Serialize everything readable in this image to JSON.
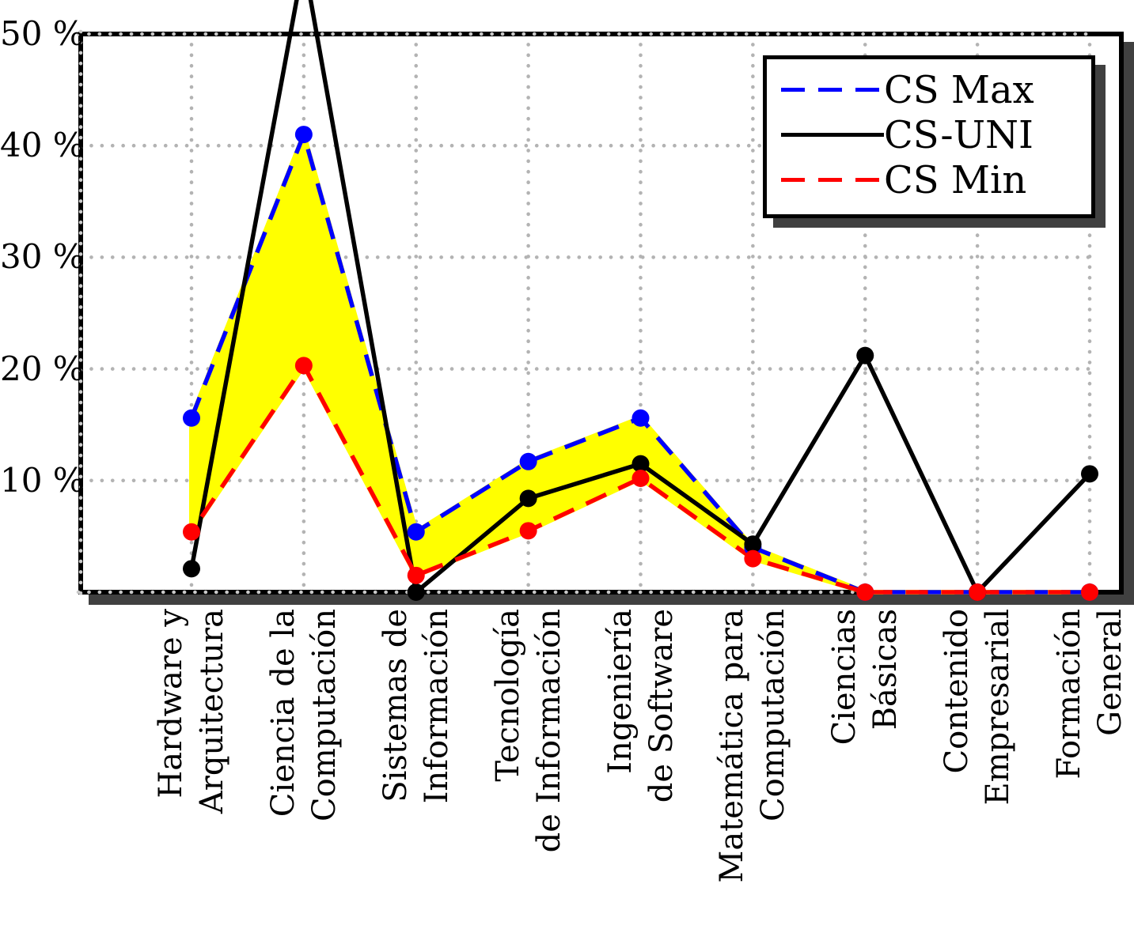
{
  "figure": {
    "background": "#ffffff",
    "frame_color": "#000000",
    "shadow_color": "#404040",
    "grid_dot_color": "#b3b3b3",
    "frame_dot_color": "#c9c9c9"
  },
  "y_axis": {
    "tick_labels": [
      "10 %",
      "20 %",
      "30 %",
      "40 %",
      "50 %"
    ],
    "tick_values": [
      10,
      20,
      30,
      40,
      50
    ],
    "min": 0,
    "max": 50
  },
  "legend": {
    "position": "top-right",
    "items": [
      {
        "label": "CS Max",
        "color": "#0000ff",
        "style": "dashed"
      },
      {
        "label": "CS-UNI",
        "color": "#000000",
        "style": "solid"
      },
      {
        "label": "CS Min",
        "color": "#ff0000",
        "style": "dashed"
      }
    ]
  },
  "chart_data": {
    "type": "line",
    "categories": [
      "Hardware y Arquitectura",
      "Ciencia de la Computación",
      "Sistemas de Información",
      "Tecnología de Información",
      "Ingeniería de Software",
      "Matemática para Computación",
      "Ciencias Básicas",
      "Contenido Empresarial",
      "Formación General"
    ],
    "category_label_lines": [
      [
        "Hardware y",
        "Arquitectura"
      ],
      [
        "Ciencia de la",
        "Computación"
      ],
      [
        "Sistemas de",
        "Información"
      ],
      [
        "Tecnología",
        "de Información"
      ],
      [
        "Ingeniería",
        "de Software"
      ],
      [
        "Matemática para",
        "Computación"
      ],
      [
        "Ciencias",
        "Básicas"
      ],
      [
        "Contenido",
        "Empresarial"
      ],
      [
        "Formación",
        "General"
      ]
    ],
    "series": [
      {
        "name": "CS Max",
        "color": "#0000ff",
        "line_style": "dashed",
        "values": [
          15.6,
          41.0,
          5.4,
          11.7,
          15.6,
          4.0,
          0,
          0,
          0
        ]
      },
      {
        "name": "CS-UNI",
        "color": "#000000",
        "line_style": "solid",
        "values": [
          2.1,
          56.5,
          0,
          8.4,
          11.5,
          4.3,
          21.2,
          0,
          10.6
        ]
      },
      {
        "name": "CS Min",
        "color": "#ff0000",
        "line_style": "dashed",
        "values": [
          5.4,
          20.3,
          1.5,
          5.5,
          10.2,
          3.0,
          0,
          0,
          0
        ]
      }
    ],
    "fill_between": {
      "upper": "CS Max",
      "lower": "CS Min",
      "color": "#ffff00"
    },
    "ylim": [
      0,
      50
    ],
    "grid": "dotted",
    "legend_position": "top-right",
    "marker": "filled-circle"
  }
}
